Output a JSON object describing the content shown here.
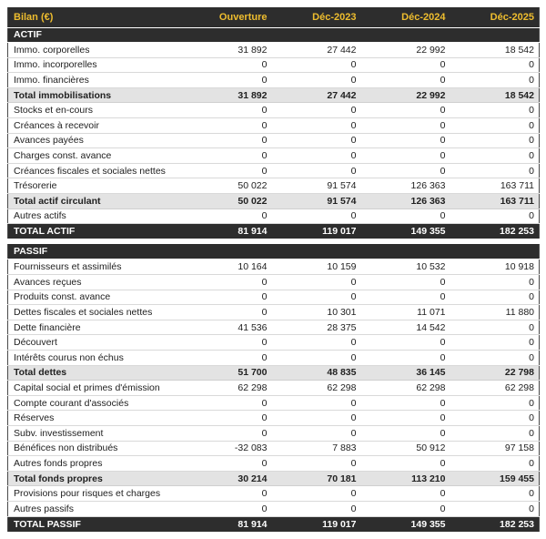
{
  "colors": {
    "header_bg": "#2d2d2d",
    "accent_yellow": "#eebd2e",
    "subtotal_bg": "#e3e3e3",
    "row_border": "#d9d9d9",
    "text": "#212121"
  },
  "chart_data": {
    "type": "table",
    "title": "Bilan (€)",
    "columns": [
      "Ouverture",
      "Déc-2023",
      "Déc-2024",
      "Déc-2025"
    ],
    "sections": [
      {
        "name": "ACTIF",
        "rows": [
          {
            "label": "Immo. corporelles",
            "values": [
              "31 892",
              "27 442",
              "22 992",
              "18 542"
            ],
            "style": "normal"
          },
          {
            "label": "Immo. incorporelles",
            "values": [
              "0",
              "0",
              "0",
              "0"
            ],
            "style": "normal"
          },
          {
            "label": "Immo. financières",
            "values": [
              "0",
              "0",
              "0",
              "0"
            ],
            "style": "normal"
          },
          {
            "label": "Total immobilisations",
            "values": [
              "31 892",
              "27 442",
              "22 992",
              "18 542"
            ],
            "style": "subtotal"
          },
          {
            "label": "Stocks et en-cours",
            "values": [
              "0",
              "0",
              "0",
              "0"
            ],
            "style": "normal"
          },
          {
            "label": "Créances à recevoir",
            "values": [
              "0",
              "0",
              "0",
              "0"
            ],
            "style": "normal"
          },
          {
            "label": "Avances payées",
            "values": [
              "0",
              "0",
              "0",
              "0"
            ],
            "style": "normal"
          },
          {
            "label": "Charges const. avance",
            "values": [
              "0",
              "0",
              "0",
              "0"
            ],
            "style": "normal"
          },
          {
            "label": "Créances fiscales et sociales nettes",
            "values": [
              "0",
              "0",
              "0",
              "0"
            ],
            "style": "normal"
          },
          {
            "label": "Trésorerie",
            "values": [
              "50 022",
              "91 574",
              "126 363",
              "163 711"
            ],
            "style": "normal"
          },
          {
            "label": "Total actif circulant",
            "values": [
              "50 022",
              "91 574",
              "126 363",
              "163 711"
            ],
            "style": "subtotal"
          },
          {
            "label": "Autres actifs",
            "values": [
              "0",
              "0",
              "0",
              "0"
            ],
            "style": "normal"
          },
          {
            "label": "TOTAL ACTIF",
            "values": [
              "81 914",
              "119 017",
              "149 355",
              "182 253"
            ],
            "style": "grandtotal"
          }
        ]
      },
      {
        "name": "PASSIF",
        "rows": [
          {
            "label": "Fournisseurs et assimilés",
            "values": [
              "10 164",
              "10 159",
              "10 532",
              "10 918"
            ],
            "style": "normal"
          },
          {
            "label": "Avances reçues",
            "values": [
              "0",
              "0",
              "0",
              "0"
            ],
            "style": "normal"
          },
          {
            "label": "Produits const. avance",
            "values": [
              "0",
              "0",
              "0",
              "0"
            ],
            "style": "normal"
          },
          {
            "label": "Dettes fiscales et sociales nettes",
            "values": [
              "0",
              "10 301",
              "11 071",
              "11 880"
            ],
            "style": "normal"
          },
          {
            "label": "Dette financière",
            "values": [
              "41 536",
              "28 375",
              "14 542",
              "0"
            ],
            "style": "normal"
          },
          {
            "label": "Découvert",
            "values": [
              "0",
              "0",
              "0",
              "0"
            ],
            "style": "normal"
          },
          {
            "label": "Intérêts courus non échus",
            "values": [
              "0",
              "0",
              "0",
              "0"
            ],
            "style": "normal"
          },
          {
            "label": "Total dettes",
            "values": [
              "51 700",
              "48 835",
              "36 145",
              "22 798"
            ],
            "style": "subtotal"
          },
          {
            "label": "Capital social et primes d'émission",
            "values": [
              "62 298",
              "62 298",
              "62 298",
              "62 298"
            ],
            "style": "normal"
          },
          {
            "label": "Compte courant d'associés",
            "values": [
              "0",
              "0",
              "0",
              "0"
            ],
            "style": "normal"
          },
          {
            "label": "Réserves",
            "values": [
              "0",
              "0",
              "0",
              "0"
            ],
            "style": "normal"
          },
          {
            "label": "Subv. investissement",
            "values": [
              "0",
              "0",
              "0",
              "0"
            ],
            "style": "normal"
          },
          {
            "label": "Bénéfices non distribués",
            "values": [
              "-32 083",
              "7 883",
              "50 912",
              "97 158"
            ],
            "style": "normal"
          },
          {
            "label": "Autres fonds propres",
            "values": [
              "0",
              "0",
              "0",
              "0"
            ],
            "style": "normal"
          },
          {
            "label": "Total fonds propres",
            "values": [
              "30 214",
              "70 181",
              "113 210",
              "159 455"
            ],
            "style": "subtotal"
          },
          {
            "label": "Provisions pour risques et charges",
            "values": [
              "0",
              "0",
              "0",
              "0"
            ],
            "style": "normal"
          },
          {
            "label": "Autres passifs",
            "values": [
              "0",
              "0",
              "0",
              "0"
            ],
            "style": "normal"
          },
          {
            "label": "TOTAL PASSIF",
            "values": [
              "81 914",
              "119 017",
              "149 355",
              "182 253"
            ],
            "style": "grandtotal"
          }
        ]
      }
    ]
  }
}
